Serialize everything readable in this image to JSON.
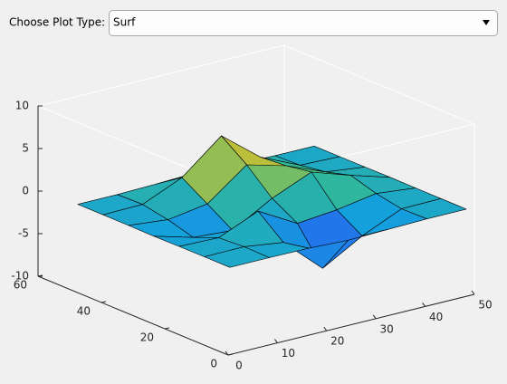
{
  "ui": {
    "label": "Choose Plot Type:",
    "dropdown": "Surf"
  },
  "chart_data": {
    "type": "surface",
    "x": [
      1,
      9,
      17,
      25,
      33,
      41,
      49
    ],
    "y": [
      1,
      9,
      17,
      25,
      33,
      41,
      49
    ],
    "z": [
      [
        0,
        0,
        -0.03,
        -0.24,
        -0.11,
        -0.01,
        0
      ],
      [
        0,
        0.05,
        -0.59,
        -4.76,
        -2.1,
        -0.06,
        0
      ],
      [
        -0.01,
        -0.13,
        1.85,
        -0.73,
        -0.27,
        0.5,
        0.01
      ],
      [
        -0.04,
        -1.33,
        -1.65,
        0.98,
        2.93,
        1.41,
        0.03
      ],
      [
        -0.01,
        -0.48,
        0.23,
        3.69,
        2.44,
        0.58,
        0.01
      ],
      [
        0,
        0.08,
        2.09,
        5.86,
        2.21,
        0.13,
        0
      ],
      [
        0,
        0.01,
        0.11,
        0.3,
        0.11,
        0.01,
        0
      ]
    ],
    "xlim": [
      0,
      50
    ],
    "ylim": [
      0,
      60
    ],
    "zlim": [
      -10,
      10
    ],
    "xticks": [
      0,
      10,
      20,
      30,
      40,
      50
    ],
    "yticks": [
      0,
      20,
      40,
      60
    ],
    "zticks": [
      -10,
      -5,
      0,
      5,
      10
    ],
    "edgecolor": "#000000"
  }
}
